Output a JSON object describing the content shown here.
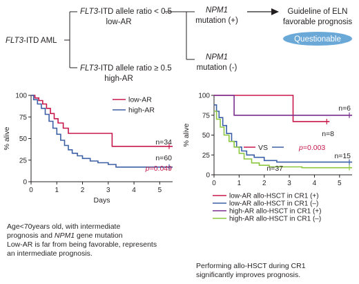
{
  "flow": {
    "root_gene": "FLT3",
    "root_rest": "-ITD AML",
    "upper_gene": "FLT3",
    "upper_rest": "-ITD allele ratio < 0.5",
    "upper_sub": "low-AR",
    "lower_gene": "FLT3",
    "lower_rest": "-ITD allele ratio ≥ 0.5",
    "lower_sub": "high-AR",
    "npm1_pos_gene": "NPM1",
    "npm1_pos_rest": "mutation (+)",
    "npm1_neg_gene": "NPM1",
    "npm1_neg_rest": "mutation (-)",
    "guideline_line1": "Guideline of ELN",
    "guideline_line2": "favorable prognosis",
    "badge": "Questionable",
    "badge_color": "#6aa8d8"
  },
  "chart_data": [
    {
      "type": "line",
      "subtype": "kaplan-meier",
      "ylabel": "% alive",
      "xlabel": "Days",
      "xlim": [
        0,
        5.5
      ],
      "ylim": [
        0,
        100
      ],
      "xticks": [
        "0",
        "1",
        "2",
        "3",
        "4",
        "5"
      ],
      "yticks": [
        "0",
        "25",
        "50",
        "75",
        "100"
      ],
      "legend_position": "top-right",
      "series": [
        {
          "name": "low-AR",
          "color": "#c8174a",
          "x": [
            0,
            0.15,
            0.3,
            0.45,
            0.6,
            0.75,
            0.9,
            1.05,
            1.25,
            1.45,
            1.6,
            1.9,
            2.3,
            3.15,
            5.5
          ],
          "y": [
            100,
            97,
            94,
            90,
            85,
            79,
            73,
            68,
            62,
            56,
            56,
            56,
            56,
            41,
            41
          ]
        },
        {
          "name": "high-AR",
          "color": "#3b5fa6",
          "x": [
            0,
            0.1,
            0.25,
            0.4,
            0.55,
            0.7,
            0.85,
            1.0,
            1.15,
            1.3,
            1.45,
            1.6,
            1.8,
            2.0,
            2.3,
            2.6,
            3.0,
            3.3,
            5.5
          ],
          "y": [
            100,
            95,
            90,
            85,
            78,
            70,
            62,
            55,
            48,
            42,
            37,
            33,
            30,
            27,
            24,
            22,
            20,
            17,
            17
          ]
        }
      ],
      "annotations": [
        "n=34",
        "n=60",
        "p=0.049"
      ]
    },
    {
      "type": "line",
      "subtype": "kaplan-meier",
      "ylabel": "% alive",
      "xlim": [
        0,
        5.5
      ],
      "ylim": [
        0,
        100
      ],
      "xticks": [
        "0",
        "1",
        "2",
        "3",
        "4",
        "5"
      ],
      "yticks": [
        "0",
        "25",
        "50",
        "75",
        "100"
      ],
      "legend_position": "bottom",
      "series": [
        {
          "name": "low-AR allo-HSCT in CR1 (+)",
          "color": "#c8174a",
          "x": [
            0,
            3.15,
            4.6
          ],
          "y": [
            100,
            67,
            67
          ]
        },
        {
          "name": "low-AR allo-HSCT in CR1 (–)",
          "color": "#3b5fa6",
          "x": [
            0,
            0.1,
            0.2,
            0.35,
            0.5,
            0.7,
            0.9,
            1.1,
            1.3,
            1.6,
            2.0,
            2.5,
            5.5
          ],
          "y": [
            88,
            80,
            72,
            62,
            52,
            42,
            35,
            30,
            25,
            22,
            18,
            16,
            16
          ]
        },
        {
          "name": "high-AR allo-HSCT in CR1 (+)",
          "color": "#7b2d8e",
          "x": [
            0,
            0.8,
            5.5
          ],
          "y": [
            100,
            75,
            75
          ]
        },
        {
          "name": "high-AR allo-HSCT in CR1 (–)",
          "color": "#8cc63f",
          "x": [
            0,
            0.1,
            0.25,
            0.4,
            0.6,
            0.8,
            1.0,
            1.2,
            1.5,
            1.8,
            2.2,
            3.5,
            5.5
          ],
          "y": [
            80,
            70,
            60,
            50,
            42,
            35,
            27,
            20,
            15,
            12,
            10,
            9,
            9
          ]
        }
      ],
      "annotations": [
        "n=6",
        "n=8",
        "n=15",
        "n=37",
        "VS",
        "p=0.003"
      ]
    }
  ],
  "left_caption": {
    "line1": "Age<70years old, with intermediate",
    "line2_pre": "prognosis and ",
    "line2_gene": "NPM1",
    "line2_post": " gene mutation",
    "line3": "Low-AR is far from being favorable, represents",
    "line4": "an intermediate prognosis."
  },
  "right_caption": {
    "line1": "Performing allo-HSCT during CR1",
    "line2": "significantly improves prognosis."
  }
}
